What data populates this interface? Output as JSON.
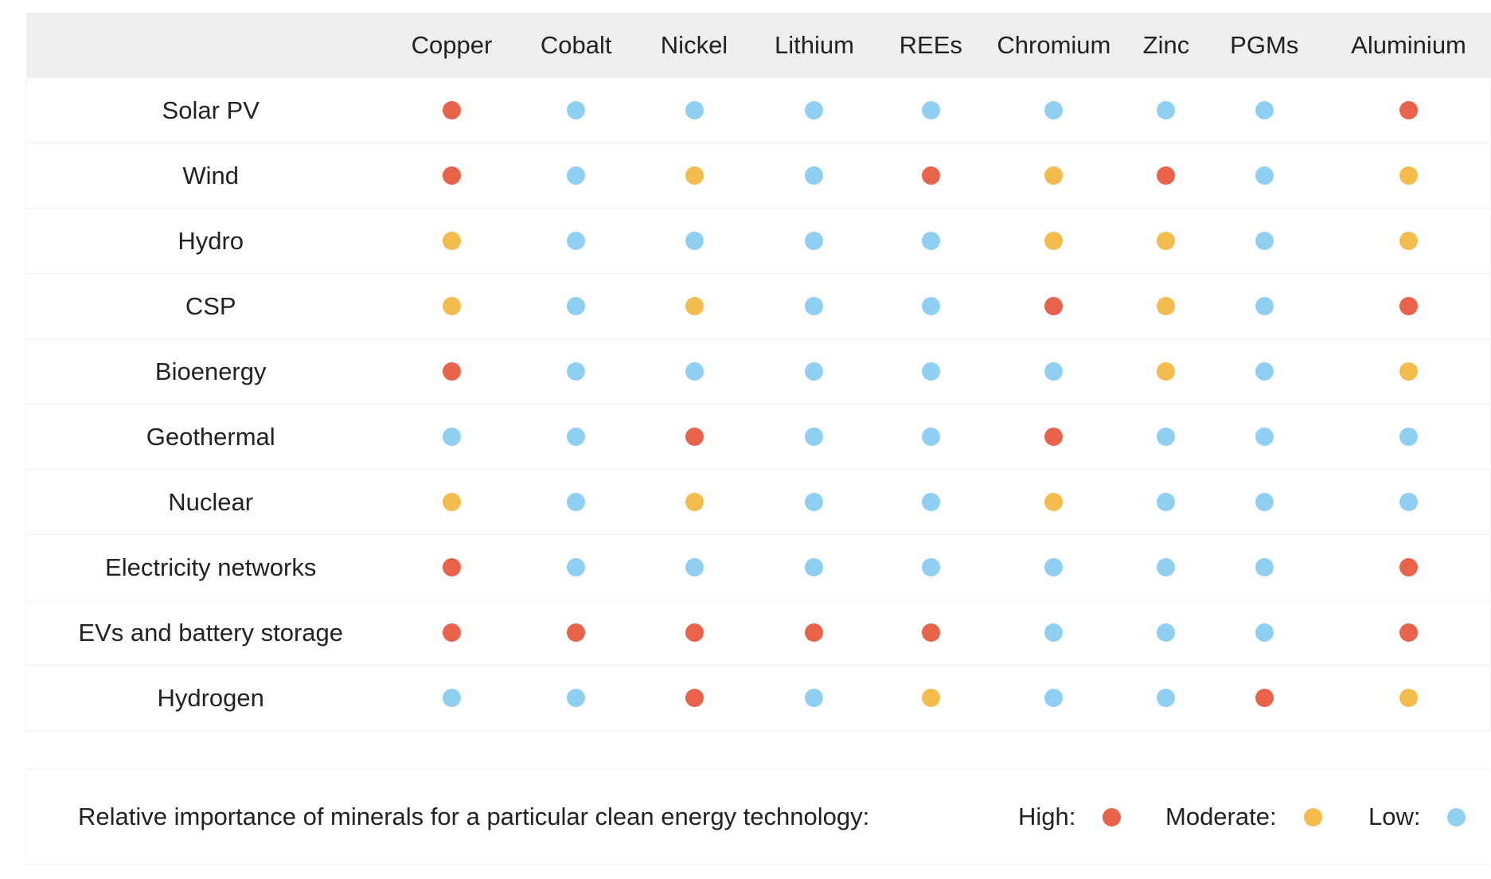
{
  "colors": {
    "high": "#e8634a",
    "moderate": "#f4bc4c",
    "low": "#8fd0f2",
    "header_bg": "#eeeeee"
  },
  "chart_data": {
    "type": "table",
    "columns": [
      "Copper",
      "Cobalt",
      "Nickel",
      "Lithium",
      "REEs",
      "Chromium",
      "Zinc",
      "PGMs",
      "Aluminium"
    ],
    "rows": [
      {
        "label": "Solar PV",
        "values": [
          "high",
          "low",
          "low",
          "low",
          "low",
          "low",
          "low",
          "low",
          "high"
        ]
      },
      {
        "label": "Wind",
        "values": [
          "high",
          "low",
          "moderate",
          "low",
          "high",
          "moderate",
          "high",
          "low",
          "moderate"
        ]
      },
      {
        "label": "Hydro",
        "values": [
          "moderate",
          "low",
          "low",
          "low",
          "low",
          "moderate",
          "moderate",
          "low",
          "moderate"
        ]
      },
      {
        "label": "CSP",
        "values": [
          "moderate",
          "low",
          "moderate",
          "low",
          "low",
          "high",
          "moderate",
          "low",
          "high"
        ]
      },
      {
        "label": "Bioenergy",
        "values": [
          "high",
          "low",
          "low",
          "low",
          "low",
          "low",
          "moderate",
          "low",
          "moderate"
        ]
      },
      {
        "label": "Geothermal",
        "values": [
          "low",
          "low",
          "high",
          "low",
          "low",
          "high",
          "low",
          "low",
          "low"
        ]
      },
      {
        "label": "Nuclear",
        "values": [
          "moderate",
          "low",
          "moderate",
          "low",
          "low",
          "moderate",
          "low",
          "low",
          "low"
        ]
      },
      {
        "label": "Electricity networks",
        "values": [
          "high",
          "low",
          "low",
          "low",
          "low",
          "low",
          "low",
          "low",
          "high"
        ]
      },
      {
        "label": "EVs and battery storage",
        "values": [
          "high",
          "high",
          "high",
          "high",
          "high",
          "low",
          "low",
          "low",
          "high"
        ]
      },
      {
        "label": "Hydrogen",
        "values": [
          "low",
          "low",
          "high",
          "low",
          "moderate",
          "low",
          "low",
          "high",
          "moderate"
        ]
      }
    ],
    "legend": {
      "title": "Relative importance of minerals for a particular clean energy technology:",
      "items": [
        {
          "key": "high",
          "label": "High:"
        },
        {
          "key": "moderate",
          "label": "Moderate:"
        },
        {
          "key": "low",
          "label": "Low:"
        }
      ],
      "placement": "bottom"
    }
  }
}
